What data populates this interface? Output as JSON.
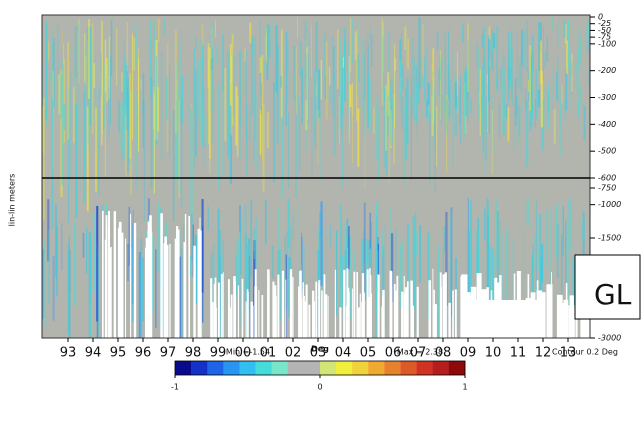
{
  "chart_data": {
    "type": "depth-time",
    "y_label": "lin-lin meters",
    "ylim": [
      0,
      -3000
    ],
    "ybreak": -600,
    "yticks": [
      0,
      -25,
      -50,
      -75,
      -100,
      -200,
      -300,
      -400,
      -500,
      -600,
      -750,
      -1000,
      -1500,
      -3000
    ],
    "categories": [
      "93",
      "94",
      "95",
      "96",
      "97",
      "98",
      "99",
      "00",
      "01",
      "02",
      "03",
      "04",
      "05",
      "06",
      "07",
      "08",
      "09",
      "10",
      "11",
      "12",
      "13"
    ],
    "min_label": "Min =-1.54",
    "units": "Deg",
    "max_label": "Max = 2.38",
    "contour_label": "Contour 0.2 Deg",
    "colorbar": {
      "lim": [
        -1,
        1
      ],
      "ticks": [
        -1,
        0,
        1
      ],
      "colors": [
        "#0a0a8c",
        "#1432c8",
        "#1e64e6",
        "#2896f0",
        "#32bef0",
        "#46dcdc",
        "#78e6c8",
        "#b4b4b4",
        "#b4b4b4",
        "#d2e678",
        "#f0f03c",
        "#f0d23c",
        "#f0aa32",
        "#e6822d",
        "#dc5a28",
        "#d23223",
        "#b41e1e",
        "#8c0a0a"
      ]
    },
    "overlay_text": "GL"
  }
}
